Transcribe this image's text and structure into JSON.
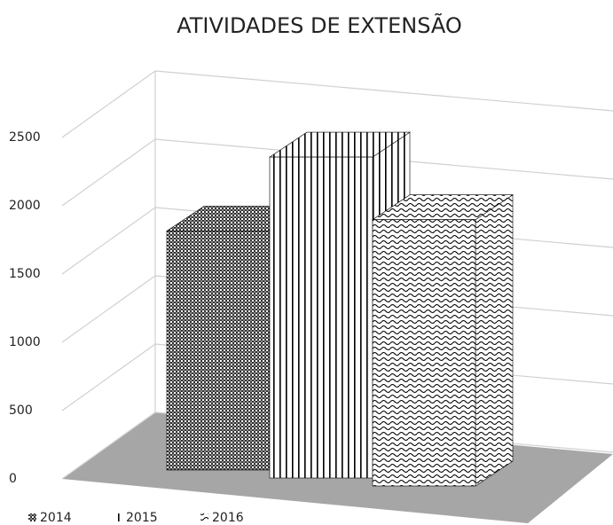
{
  "chart_data": {
    "type": "bar3d",
    "title": "ATIVIDADES DE EXTENSÃO",
    "categories": [
      null
    ],
    "series": [
      {
        "name": "2014",
        "color": "#000000",
        "pattern": "dots",
        "values": [
          1750
        ]
      },
      {
        "name": "2015",
        "color": "#000000",
        "pattern": "vertical",
        "values": [
          2350
        ]
      },
      {
        "name": "2016",
        "color": "#000000",
        "pattern": "waves",
        "values": [
          1950
        ]
      }
    ],
    "ylim": [
      0,
      2500
    ],
    "yticks": [
      0,
      500,
      1000,
      1500,
      2000,
      2500
    ],
    "grid": true,
    "legend": "bottom-left"
  }
}
